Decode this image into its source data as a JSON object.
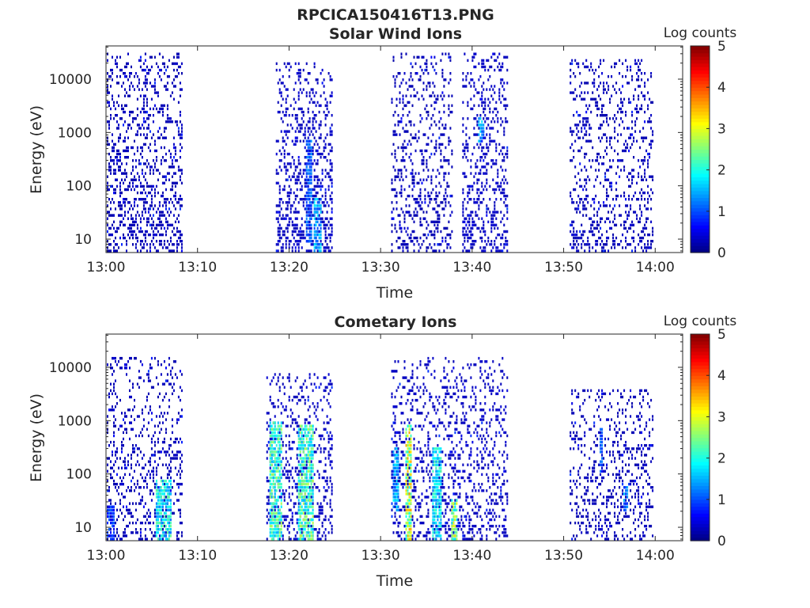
{
  "figure": {
    "title": "RPCICA150416T13.PNG"
  },
  "chart_data": [
    {
      "type": "heatmap",
      "title": "Solar Wind Ions",
      "xlabel": "Time",
      "ylabel": "Energy (eV)",
      "x_tick_labels": [
        "13:00",
        "13:10",
        "13:20",
        "13:30",
        "13:40",
        "13:50",
        "14:00"
      ],
      "x_tick_minutes": [
        0,
        10,
        20,
        30,
        40,
        50,
        60
      ],
      "xlim_minutes": [
        0,
        63
      ],
      "y_scale": "log",
      "y_tick_labels": [
        "10",
        "100",
        "1000",
        "10000"
      ],
      "y_tick_values": [
        10,
        100,
        1000,
        10000
      ],
      "ylim": [
        5.6,
        42000
      ],
      "colorbar": {
        "label": "Log counts",
        "ticks": [
          "0",
          "1",
          "2",
          "3",
          "4",
          "5"
        ],
        "range": [
          0,
          5
        ],
        "colormap": "jet"
      },
      "bursts": [
        {
          "start": 0.0,
          "end": 8.3,
          "emin": 6,
          "emax": 30000,
          "density": 0.32,
          "base_level": 0.2
        },
        {
          "start": 18.5,
          "end": 24.7,
          "emin": 6,
          "emax": 20000,
          "density": 0.34,
          "base_level": 0.25
        },
        {
          "start": 31.0,
          "end": 37.8,
          "emin": 6,
          "emax": 30000,
          "density": 0.28,
          "base_level": 0.2
        },
        {
          "start": 38.8,
          "end": 43.8,
          "emin": 6,
          "emax": 30000,
          "density": 0.33,
          "base_level": 0.25
        },
        {
          "start": 50.5,
          "end": 59.8,
          "emin": 6,
          "emax": 25000,
          "density": 0.26,
          "base_level": 0.2
        }
      ],
      "streaks": [
        {
          "start": 21.7,
          "end": 22.5,
          "emin": 8,
          "emax": 700,
          "level": 1.3
        },
        {
          "start": 22.6,
          "end": 23.5,
          "emin": 6,
          "emax": 60,
          "level": 1.7
        },
        {
          "start": 40.6,
          "end": 41.2,
          "emin": 600,
          "emax": 2000,
          "level": 1.6
        }
      ]
    },
    {
      "type": "heatmap",
      "title": "Cometary Ions",
      "xlabel": "Time",
      "ylabel": "Energy (eV)",
      "x_tick_labels": [
        "13:00",
        "13:10",
        "13:20",
        "13:30",
        "13:40",
        "13:50",
        "14:00"
      ],
      "x_tick_minutes": [
        0,
        10,
        20,
        30,
        40,
        50,
        60
      ],
      "xlim_minutes": [
        0,
        63
      ],
      "y_scale": "log",
      "y_tick_labels": [
        "10",
        "100",
        "1000",
        "10000"
      ],
      "y_tick_values": [
        10,
        100,
        1000,
        10000
      ],
      "ylim": [
        5.6,
        42000
      ],
      "colorbar": {
        "label": "Log counts",
        "ticks": [
          "0",
          "1",
          "2",
          "3",
          "4",
          "5"
        ],
        "range": [
          0,
          5
        ],
        "colormap": "jet"
      },
      "bursts": [
        {
          "start": 0.0,
          "end": 8.3,
          "emin": 6,
          "emax": 15000,
          "density": 0.26,
          "base_level": 0.2
        },
        {
          "start": 17.5,
          "end": 24.7,
          "emin": 6,
          "emax": 8000,
          "density": 0.3,
          "base_level": 0.25
        },
        {
          "start": 31.0,
          "end": 43.8,
          "emin": 6,
          "emax": 15000,
          "density": 0.26,
          "base_level": 0.25
        },
        {
          "start": 50.5,
          "end": 59.8,
          "emin": 6,
          "emax": 4000,
          "density": 0.24,
          "base_level": 0.2
        }
      ],
      "streaks": [
        {
          "start": 0.0,
          "end": 0.9,
          "emin": 6,
          "emax": 25,
          "level": 1.0
        },
        {
          "start": 5.3,
          "end": 7.0,
          "emin": 6,
          "emax": 80,
          "level": 2.2
        },
        {
          "start": 17.7,
          "end": 19.2,
          "emin": 6,
          "emax": 1000,
          "level": 2.5
        },
        {
          "start": 20.8,
          "end": 22.6,
          "emin": 6,
          "emax": 800,
          "level": 2.6
        },
        {
          "start": 31.2,
          "end": 31.9,
          "emin": 20,
          "emax": 300,
          "level": 1.7
        },
        {
          "start": 32.6,
          "end": 33.3,
          "emin": 6,
          "emax": 800,
          "level": 3.3
        },
        {
          "start": 35.5,
          "end": 36.6,
          "emin": 6,
          "emax": 300,
          "level": 2.1
        },
        {
          "start": 37.6,
          "end": 38.4,
          "emin": 6,
          "emax": 35,
          "level": 3.0
        },
        {
          "start": 53.8,
          "end": 54.2,
          "emin": 100,
          "emax": 700,
          "level": 1.2
        },
        {
          "start": 56.5,
          "end": 57.0,
          "emin": 20,
          "emax": 60,
          "level": 1.5
        }
      ]
    }
  ]
}
